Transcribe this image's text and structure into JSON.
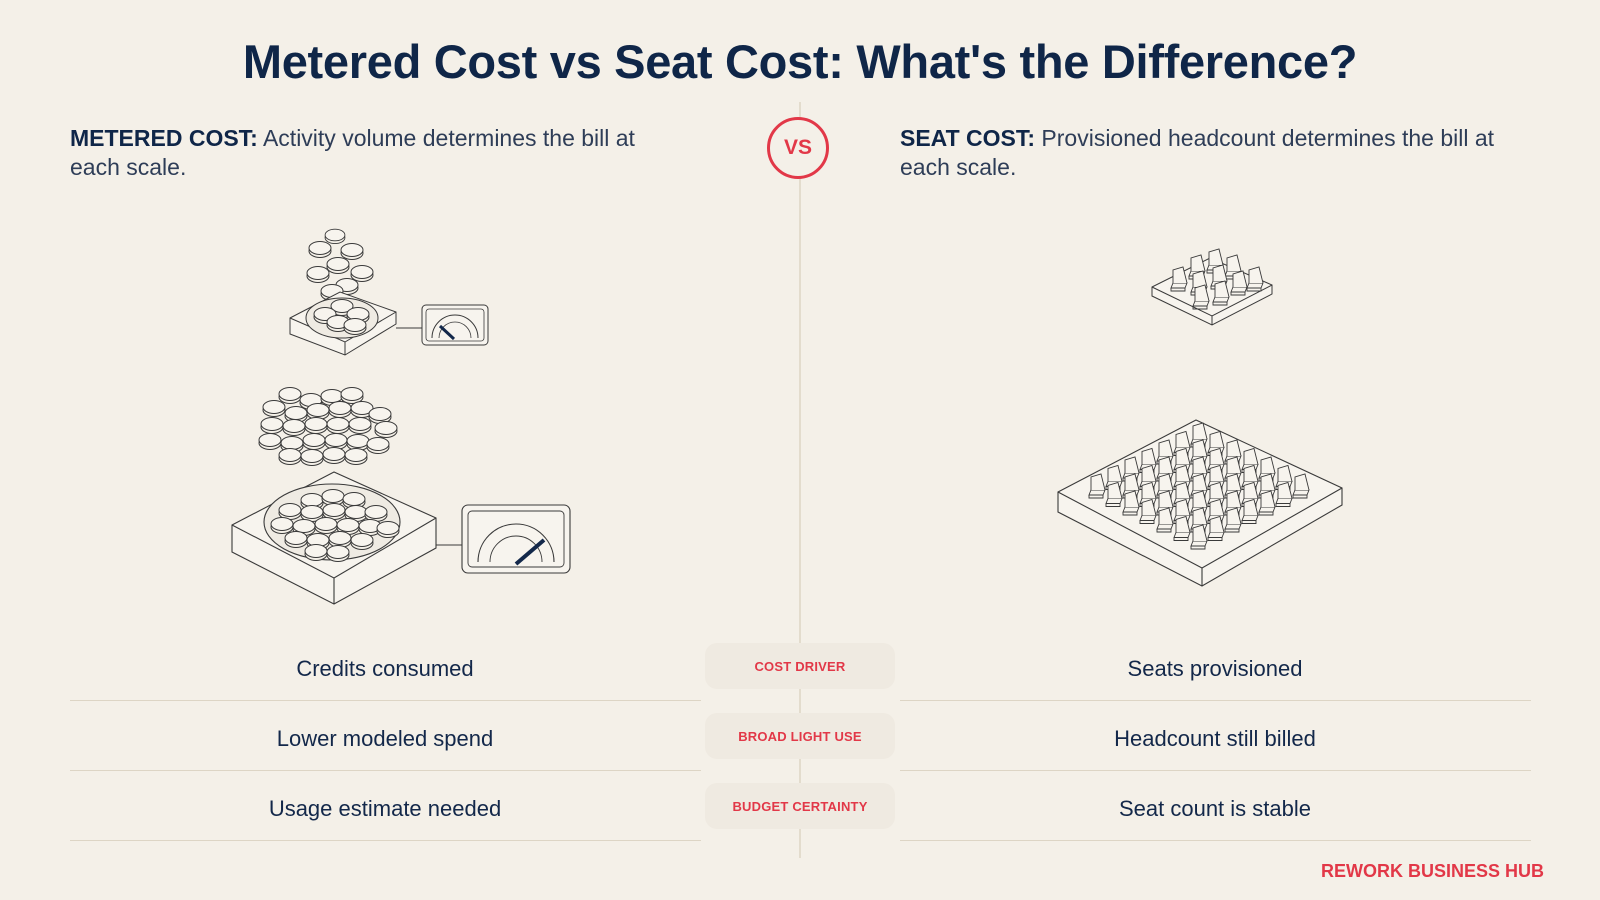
{
  "title": "Metered Cost vs Seat Cost: What's the Difference?",
  "vs_label": "VS",
  "left": {
    "heading_strong": "METERED COST:",
    "heading_rest": " Activity volume determines the bill at each scale.",
    "rows": [
      "Credits consumed",
      "Lower modeled spend",
      "Usage estimate needed"
    ]
  },
  "right": {
    "heading_strong": "SEAT COST:",
    "heading_rest": " Provisioned headcount determines the bill at each scale.",
    "rows": [
      "Seats provisioned",
      "Headcount still billed",
      "Seat count is stable"
    ]
  },
  "criteria": [
    "COST DRIVER",
    "BROAD LIGHT USE",
    "BUDGET CERTAINTY"
  ],
  "brand": "REWORK BUSINESS HUB",
  "colors": {
    "background": "#f4f0e8",
    "navy": "#0f2648",
    "accent": "#e23848",
    "line": "#ddd5c5"
  },
  "icons": {
    "metered_small": "coin-tray-with-gauge-icon",
    "metered_large": "coin-tray-with-gauge-icon",
    "seat_small": "seat-grid-platform-icon",
    "seat_large": "seat-grid-platform-icon"
  }
}
